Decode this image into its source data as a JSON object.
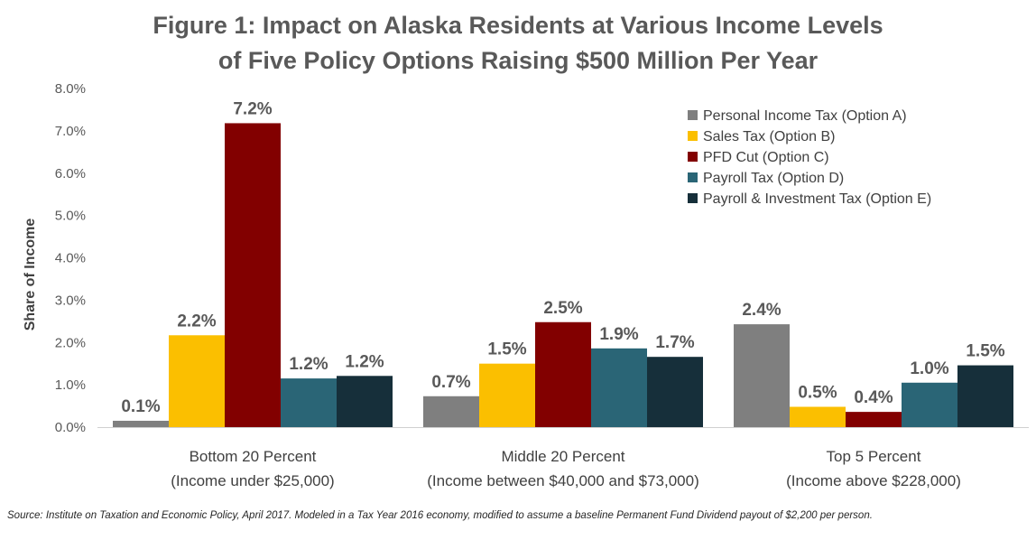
{
  "chart_data": {
    "type": "bar",
    "title_lines": [
      "Figure 1: Impact on Alaska Residents at Various Income Levels",
      "of Five Policy Options Raising $500 Million Per Year"
    ],
    "ylabel": "Share of Income",
    "ylim": [
      0,
      8.0
    ],
    "yticks": [
      "0.0%",
      "1.0%",
      "2.0%",
      "3.0%",
      "4.0%",
      "5.0%",
      "6.0%",
      "7.0%",
      "8.0%"
    ],
    "categories": [
      {
        "line1": "Bottom 20 Percent",
        "line2": "(Income under $25,000)"
      },
      {
        "line1": "Middle 20 Percent",
        "line2": "(Income between $40,000 and $73,000)"
      },
      {
        "line1": "Top 5 Percent",
        "line2": "(Income above $228,000)"
      }
    ],
    "series": [
      {
        "name": "Personal Income Tax (Option A)",
        "color": "#7f7f7f",
        "values": [
          0.15,
          0.73,
          2.43
        ],
        "labels": [
          "0.1%",
          "0.7%",
          "2.4%"
        ]
      },
      {
        "name": "Sales Tax (Option B)",
        "color": "#fbbf00",
        "values": [
          2.17,
          1.5,
          0.48
        ],
        "labels": [
          "2.2%",
          "1.5%",
          "0.5%"
        ]
      },
      {
        "name": "PFD Cut (Option C)",
        "color": "#820000",
        "values": [
          7.18,
          2.48,
          0.36
        ],
        "labels": [
          "7.2%",
          "2.5%",
          "0.4%"
        ]
      },
      {
        "name": "Payroll Tax (Option D)",
        "color": "#2a6576",
        "values": [
          1.15,
          1.86,
          1.05
        ],
        "labels": [
          "1.2%",
          "1.9%",
          "1.0%"
        ]
      },
      {
        "name": "Payroll & Investment Tax (Option E)",
        "color": "#162f3a",
        "values": [
          1.21,
          1.66,
          1.46
        ],
        "labels": [
          "1.2%",
          "1.7%",
          "1.5%"
        ]
      }
    ],
    "legend_position": "top-right",
    "grid": false
  },
  "source_note": "Source: Institute on Taxation and Economic Policy, April 2017.  Modeled in a Tax Year 2016 economy, modified to assume a baseline Permanent Fund Dividend payout of $2,200 per person."
}
